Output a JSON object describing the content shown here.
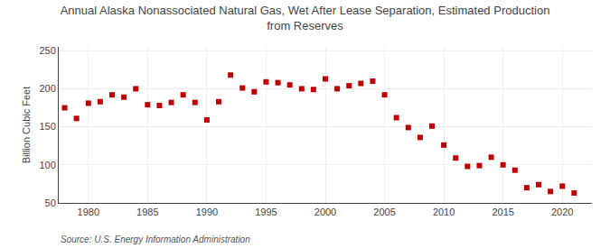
{
  "chart_data": {
    "type": "scatter",
    "title": "Annual Alaska Nonassociated Natural Gas, Wet After Lease Separation, Estimated Production\nfrom Reserves",
    "ylabel": "Billion Cubic Feet",
    "annotations": [
      "Source: U.S. Energy Information Administration"
    ],
    "x": [
      1978,
      1979,
      1980,
      1981,
      1982,
      1983,
      1984,
      1985,
      1986,
      1987,
      1988,
      1989,
      1990,
      1991,
      1992,
      1993,
      1994,
      1995,
      1996,
      1997,
      1998,
      1999,
      2000,
      2001,
      2002,
      2003,
      2004,
      2005,
      2006,
      2007,
      2008,
      2009,
      2010,
      2011,
      2012,
      2013,
      2014,
      2015,
      2016,
      2017,
      2018,
      2019,
      2020,
      2021
    ],
    "values": [
      175,
      161,
      181,
      183,
      192,
      189,
      200,
      179,
      178,
      182,
      192,
      182,
      159,
      183,
      218,
      201,
      196,
      209,
      208,
      205,
      200,
      199,
      213,
      200,
      204,
      207,
      210,
      192,
      162,
      149,
      136,
      151,
      126,
      109,
      98,
      99,
      110,
      100,
      93,
      70,
      74,
      65,
      72,
      63
    ],
    "color": "#c00000",
    "marker": "square",
    "xlim": [
      1977.5,
      2022.5
    ],
    "ylim": [
      50,
      255
    ],
    "xticks": [
      1980,
      1985,
      1990,
      1995,
      2000,
      2005,
      2010,
      2015,
      2020
    ],
    "yticks": [
      50,
      100,
      150,
      200,
      250
    ],
    "grid": true
  }
}
